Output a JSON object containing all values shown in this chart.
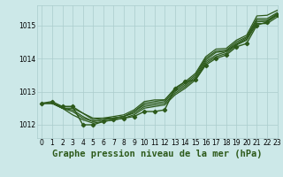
{
  "background_color": "#cce8e8",
  "grid_color": "#aacccc",
  "line_color": "#2d5a1b",
  "title": "Graphe pression niveau de la mer (hPa)",
  "xlim": [
    -0.5,
    23
  ],
  "ylim": [
    1011.6,
    1015.6
  ],
  "yticks": [
    1012,
    1013,
    1014,
    1015
  ],
  "xtick_labels": [
    "0",
    "1",
    "2",
    "3",
    "4",
    "5",
    "6",
    "7",
    "8",
    "9",
    "10",
    "11",
    "12",
    "13",
    "14",
    "15",
    "16",
    "17",
    "18",
    "19",
    "20",
    "21",
    "22",
    "23"
  ],
  "series": [
    {
      "y": [
        1012.65,
        1012.7,
        1012.55,
        1012.55,
        1012.0,
        1012.0,
        1012.1,
        1012.15,
        1012.2,
        1012.25,
        1012.4,
        1012.4,
        1012.45,
        1013.1,
        1013.3,
        1013.35,
        1013.8,
        1014.0,
        1014.1,
        1014.35,
        1014.45,
        1015.0,
        1015.1,
        1015.3
      ],
      "marker": true,
      "lw": 1.0
    },
    {
      "y": [
        1012.65,
        1012.65,
        1012.5,
        1012.3,
        1012.15,
        1012.05,
        1012.1,
        1012.15,
        1012.2,
        1012.3,
        1012.5,
        1012.55,
        1012.6,
        1012.9,
        1013.1,
        1013.35,
        1013.85,
        1014.05,
        1014.15,
        1014.4,
        1014.55,
        1015.05,
        1015.05,
        1015.25
      ],
      "marker": false,
      "lw": 0.9
    },
    {
      "y": [
        1012.65,
        1012.65,
        1012.5,
        1012.4,
        1012.2,
        1012.1,
        1012.15,
        1012.2,
        1012.25,
        1012.35,
        1012.55,
        1012.6,
        1012.65,
        1012.95,
        1013.15,
        1013.4,
        1013.9,
        1014.1,
        1014.2,
        1014.42,
        1014.58,
        1015.1,
        1015.12,
        1015.32
      ],
      "marker": false,
      "lw": 0.9
    },
    {
      "y": [
        1012.65,
        1012.65,
        1012.5,
        1012.45,
        1012.25,
        1012.1,
        1012.15,
        1012.2,
        1012.25,
        1012.4,
        1012.6,
        1012.65,
        1012.7,
        1013.0,
        1013.2,
        1013.45,
        1013.95,
        1014.18,
        1014.22,
        1014.45,
        1014.62,
        1015.15,
        1015.15,
        1015.35
      ],
      "marker": false,
      "lw": 0.9
    },
    {
      "y": [
        1012.65,
        1012.65,
        1012.5,
        1012.5,
        1012.35,
        1012.15,
        1012.2,
        1012.2,
        1012.25,
        1012.4,
        1012.65,
        1012.7,
        1012.75,
        1013.05,
        1013.25,
        1013.5,
        1014.0,
        1014.22,
        1014.25,
        1014.5,
        1014.65,
        1015.2,
        1015.2,
        1015.38
      ],
      "marker": false,
      "lw": 0.9
    },
    {
      "y": [
        1012.65,
        1012.65,
        1012.55,
        1012.55,
        1012.35,
        1012.2,
        1012.2,
        1012.25,
        1012.3,
        1012.45,
        1012.7,
        1012.75,
        1012.75,
        1013.1,
        1013.3,
        1013.55,
        1014.05,
        1014.28,
        1014.3,
        1014.55,
        1014.7,
        1015.28,
        1015.3,
        1015.45
      ],
      "marker": false,
      "lw": 0.9
    }
  ],
  "marker": "D",
  "marker_size": 2.2,
  "title_fontsize": 7.5,
  "tick_fontsize": 5.5
}
